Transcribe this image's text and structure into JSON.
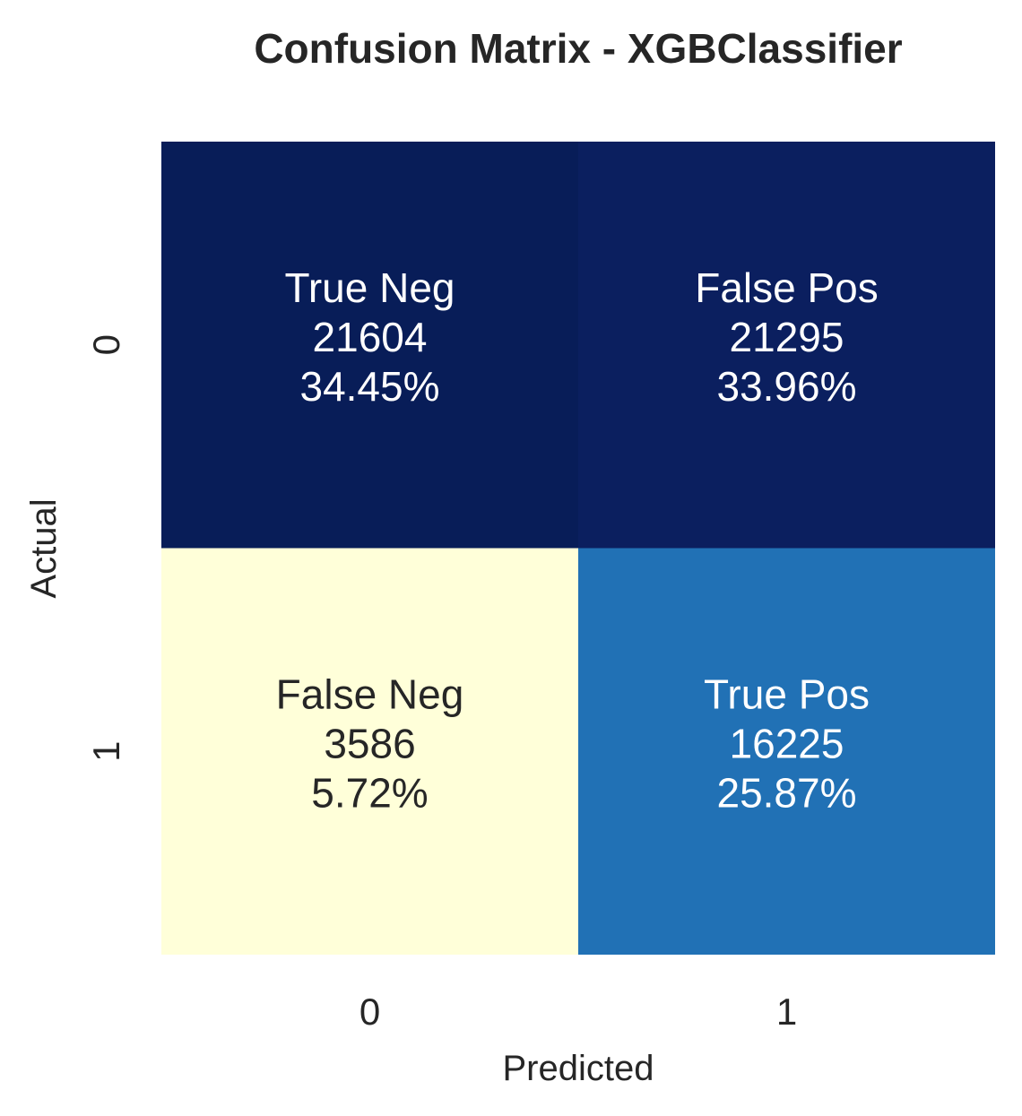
{
  "chart_data": {
    "type": "heatmap",
    "title": "Confusion Matrix - XGBClassifier",
    "xlabel": "Predicted",
    "ylabel": "Actual",
    "x_categories": [
      "0",
      "1"
    ],
    "y_categories": [
      "0",
      "1"
    ],
    "colormap": "YlGnBu",
    "colorbar": false,
    "cells": [
      {
        "row": 0,
        "col": 0,
        "name": "True Neg",
        "count": "21604",
        "percent": "34.45%",
        "value": 21604,
        "color": "#081d58",
        "text_color": "#ffffff"
      },
      {
        "row": 0,
        "col": 1,
        "name": "False Pos",
        "count": "21295",
        "percent": "33.96%",
        "value": 21295,
        "color": "#0b1f5f",
        "text_color": "#ffffff"
      },
      {
        "row": 1,
        "col": 0,
        "name": "False Neg",
        "count": "3586",
        "percent": "5.72%",
        "value": 3586,
        "color": "#ffffd9",
        "text_color": "#262626"
      },
      {
        "row": 1,
        "col": 1,
        "name": "True Pos",
        "count": "16225",
        "percent": "25.87%",
        "value": 16225,
        "color": "#2171b5",
        "text_color": "#ffffff"
      }
    ]
  }
}
